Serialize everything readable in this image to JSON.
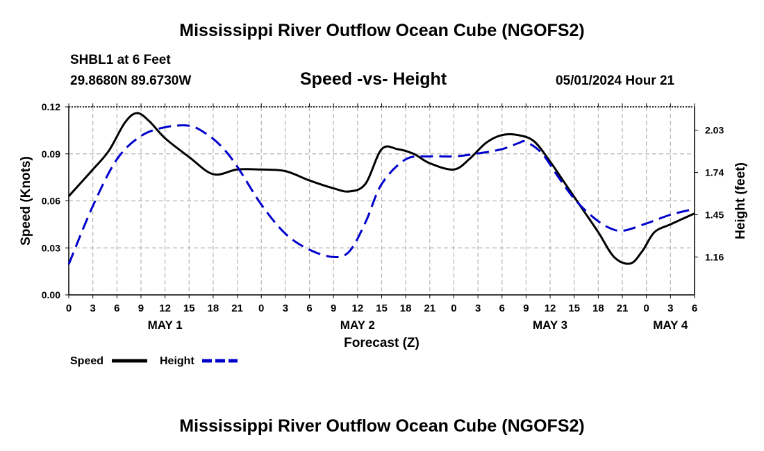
{
  "header": {
    "title": "Mississippi River Outflow Ocean Cube (NGOFS2)",
    "station": "SHBL1 at 6 Feet",
    "coords": "29.8680N  89.6730W",
    "subtitle": "Speed -vs- Height",
    "datetime": "05/01/2024 Hour 21"
  },
  "footer": {
    "title": "Mississippi River Outflow Ocean Cube (NGOFS2)"
  },
  "colors": {
    "speed": "#000000",
    "height": "#0000cc",
    "grid": "#b4b4b4"
  },
  "chart_data": {
    "type": "line",
    "xlabel": "Forecast (Z)",
    "ylabel": "Speed (Knots)",
    "y2label": "Height (feet)",
    "x_range_hours": [
      0,
      78
    ],
    "ylim": [
      0,
      0.12
    ],
    "y2lim": [
      0.9,
      2.19
    ],
    "x_ticks": [
      "0",
      "3",
      "6",
      "9",
      "12",
      "15",
      "18",
      "21",
      "0",
      "3",
      "6",
      "9",
      "12",
      "15",
      "18",
      "21",
      "0",
      "3",
      "6",
      "9",
      "12",
      "15",
      "18",
      "21",
      "0",
      "3",
      "6"
    ],
    "date_labels": [
      {
        "label": "MAY 1",
        "hour": 12
      },
      {
        "label": "MAY 2",
        "hour": 36
      },
      {
        "label": "MAY 3",
        "hour": 60
      },
      {
        "label": "MAY 4",
        "hour": 75
      }
    ],
    "y_ticks": [
      "0.00",
      "0.03",
      "0.06",
      "0.09",
      "0.12"
    ],
    "y2_ticks": [
      "1.16",
      "1.45",
      "1.74",
      "2.03"
    ],
    "grid": true,
    "legend": [
      {
        "name": "Speed",
        "style": "solid"
      },
      {
        "name": "Height",
        "style": "dashed"
      }
    ],
    "series": [
      {
        "name": "Speed",
        "axis": "left",
        "style": "solid",
        "x": [
          0,
          3,
          5,
          7,
          8.5,
          10,
          12,
          15,
          18,
          21,
          24,
          27,
          30,
          33,
          35,
          37,
          39,
          41,
          43,
          45,
          48,
          50,
          52,
          54,
          56,
          58,
          60,
          62,
          64,
          66,
          68,
          70,
          71.5,
          73,
          75,
          78
        ],
        "values": [
          0.063,
          0.08,
          0.092,
          0.11,
          0.116,
          0.111,
          0.1,
          0.088,
          0.077,
          0.08,
          0.08,
          0.079,
          0.073,
          0.068,
          0.066,
          0.071,
          0.093,
          0.093,
          0.09,
          0.084,
          0.08,
          0.087,
          0.097,
          0.102,
          0.102,
          0.098,
          0.085,
          0.07,
          0.055,
          0.04,
          0.024,
          0.02,
          0.028,
          0.04,
          0.045,
          0.052
        ]
      },
      {
        "name": "Height",
        "axis": "right",
        "style": "dashed",
        "x": [
          0,
          3,
          6,
          9,
          12,
          15,
          17,
          19,
          21,
          24,
          27,
          30,
          33,
          35,
          37,
          39,
          42,
          45,
          48,
          51,
          54,
          56,
          57,
          59,
          61,
          63,
          65,
          67,
          69,
          72,
          75,
          78
        ],
        "values": [
          1.11,
          1.51,
          1.83,
          1.99,
          2.05,
          2.06,
          2.01,
          1.92,
          1.78,
          1.52,
          1.32,
          1.21,
          1.16,
          1.2,
          1.4,
          1.66,
          1.83,
          1.85,
          1.85,
          1.87,
          1.9,
          1.94,
          1.95,
          1.87,
          1.71,
          1.56,
          1.45,
          1.37,
          1.34,
          1.39,
          1.45,
          1.49
        ]
      }
    ]
  }
}
